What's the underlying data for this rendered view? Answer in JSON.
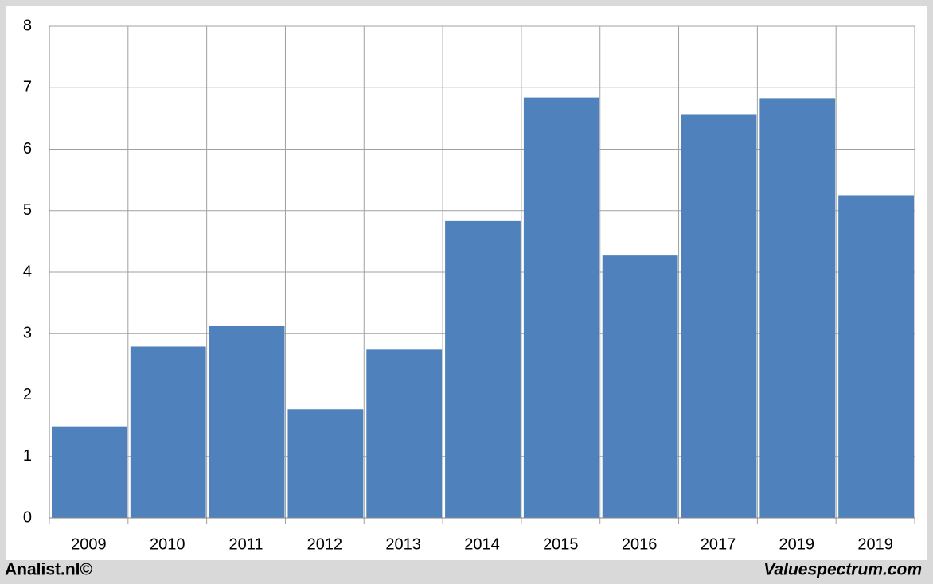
{
  "chart_data": {
    "type": "bar",
    "categories": [
      "2009",
      "2010",
      "2011",
      "2012",
      "2013",
      "2014",
      "2015",
      "2016",
      "2017",
      "2019",
      "2019"
    ],
    "values": [
      1.48,
      2.79,
      3.12,
      1.77,
      2.74,
      4.83,
      6.84,
      4.27,
      6.57,
      6.83,
      5.25
    ],
    "color": "#4f81bd",
    "ylim": [
      0,
      8
    ],
    "yticks": [
      0,
      1,
      2,
      3,
      4,
      5,
      6,
      7,
      8
    ],
    "grid": true
  },
  "footer": {
    "left": "Analist.nl©",
    "right": "Valuespectrum.com"
  }
}
